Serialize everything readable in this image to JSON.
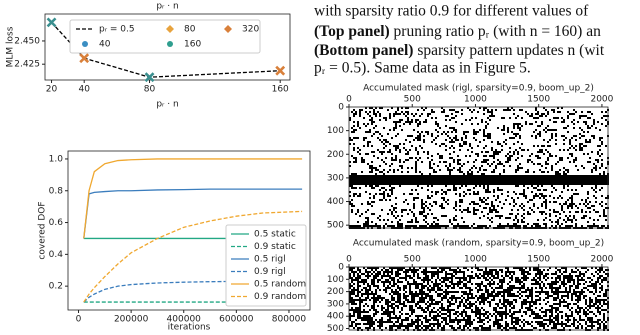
{
  "caption": {
    "line1": "with sparsity ratio 0.9 for different values of",
    "top_label": "(Top panel)",
    "line2": " pruning ratio pᵣ (with n = 160) an",
    "bottom_label": "(Bottom panel)",
    "line3": " sparsity pattern updates n (wit",
    "line4": "pᵣ = 0.5). Same data as in Figure 5."
  },
  "chart_data": [
    {
      "type": "line",
      "title": "pᵣ · n",
      "x_label": "pᵣ · n",
      "y_label": "MLM loss",
      "x": [
        20,
        40,
        80,
        160
      ],
      "series": [
        {
          "name": "pᵣ = 0.5",
          "color": "#000000",
          "dash": true,
          "values": [
            2.47,
            2.4315,
            2.411,
            2.418
          ],
          "point_colors": [
            "#3a8f8f",
            "#d9803a",
            "#3a8f8f",
            "#d9803a"
          ]
        }
      ],
      "marker_legend": [
        {
          "name": "40",
          "color": "#3b8ec2",
          "marker": "circle"
        },
        {
          "name": "80",
          "color": "#e8a33d",
          "marker": "diamond"
        },
        {
          "name": "160",
          "color": "#2f9e8f",
          "marker": "circle"
        },
        {
          "name": "320",
          "color": "#d9803a",
          "marker": "diamond"
        }
      ],
      "xlim": [
        16,
        166
      ],
      "ylim": [
        2.408,
        2.479
      ],
      "xticks": [
        20,
        40,
        80,
        160
      ],
      "yticks": [
        2.425,
        {
          "value": 2.45,
          "label": "2.450"
        }
      ],
      "legend": "upper center"
    },
    {
      "type": "line",
      "x_label": "iterations",
      "y_label": "covered DOF",
      "x": [
        20000,
        40000,
        60000,
        100000,
        150000,
        200000,
        300000,
        400000,
        500000,
        600000,
        700000,
        850000
      ],
      "series": [
        {
          "name": "0.5 static",
          "color": "#22a884",
          "dash": false,
          "values": [
            0.5,
            0.5,
            0.5,
            0.5,
            0.5,
            0.5,
            0.5,
            0.5,
            0.5,
            0.5,
            0.5,
            0.5
          ]
        },
        {
          "name": "0.9 static",
          "color": "#22a884",
          "dash": true,
          "values": [
            0.1,
            0.1,
            0.1,
            0.1,
            0.1,
            0.1,
            0.1,
            0.1,
            0.1,
            0.1,
            0.1,
            0.1
          ]
        },
        {
          "name": "0.5 rigl",
          "color": "#3b7dbd",
          "dash": false,
          "values": [
            0.5,
            0.78,
            0.79,
            0.795,
            0.8,
            0.8,
            0.805,
            0.807,
            0.81,
            0.81,
            0.81,
            0.81
          ]
        },
        {
          "name": "0.9 rigl",
          "color": "#3b7dbd",
          "dash": true,
          "values": [
            0.1,
            0.13,
            0.15,
            0.18,
            0.2,
            0.21,
            0.22,
            0.225,
            0.228,
            0.23,
            0.23,
            0.232
          ]
        },
        {
          "name": "0.5 random",
          "color": "#f0a830",
          "dash": false,
          "values": [
            0.5,
            0.8,
            0.92,
            0.97,
            0.99,
            0.995,
            1,
            1,
            1,
            1,
            1,
            1
          ]
        },
        {
          "name": "0.9 random",
          "color": "#f0a830",
          "dash": true,
          "values": [
            0.1,
            0.15,
            0.19,
            0.26,
            0.34,
            0.41,
            0.5,
            0.57,
            0.61,
            0.64,
            0.66,
            0.67
          ]
        }
      ],
      "xlim": [
        -40000,
        880000
      ],
      "ylim": [
        0.05,
        1.05
      ],
      "xticks": [
        0,
        200000,
        400000,
        600000,
        800000
      ],
      "yticks": [
        0.2,
        0.4,
        0.6,
        0.8,
        {
          "value": 1,
          "label": "1.0"
        }
      ],
      "legend": "lower right"
    }
  ],
  "masks": [
    {
      "title": "Accumulated mask (rigl, sparsity=0.9, boom_up_2)",
      "xticks": [
        0,
        500,
        1000,
        1500,
        2000
      ],
      "yticks": [
        0,
        100,
        200,
        300,
        400,
        500
      ],
      "xlim": [
        0,
        2048
      ],
      "ylim": [
        0,
        512
      ]
    },
    {
      "title": "Accumulated mask (random, sparsity=0.9, boom_up_2)",
      "xticks": [
        0,
        500,
        1000,
        1500,
        2000
      ],
      "yticks": [
        0,
        100,
        200,
        300,
        400,
        500
      ],
      "xlim": [
        0,
        2048
      ],
      "ylim": [
        0,
        512
      ]
    }
  ]
}
